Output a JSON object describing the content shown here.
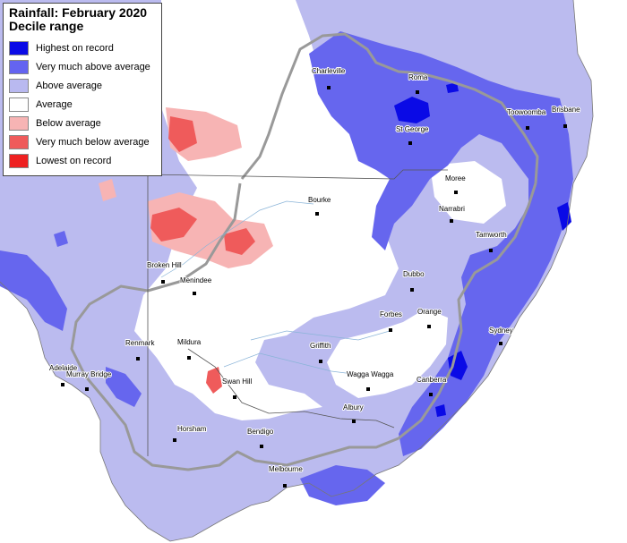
{
  "legend": {
    "title": "Rainfall: February 2020",
    "subtitle": "Decile range",
    "items": [
      {
        "label": "Highest on record",
        "color": "#0a0ae6"
      },
      {
        "label": "Very much above average",
        "color": "#6464f0"
      },
      {
        "label": "Above average",
        "color": "#b9b9f0"
      },
      {
        "label": "Average",
        "color": "#ffffff"
      },
      {
        "label": "Below average",
        "color": "#f7b4b4"
      },
      {
        "label": "Very much below average",
        "color": "#ef5b5b"
      },
      {
        "label": "Lowest on record",
        "color": "#ee2020"
      }
    ]
  },
  "places": {
    "charleville": "Charleville",
    "roma": "Roma",
    "toowoomba": "Toowoomba",
    "brisbane": "Brisbane",
    "st_george": "St George",
    "moree": "Moree",
    "narrabri": "Narrabri",
    "bourke": "Bourke",
    "tamworth": "Tamworth",
    "broken_hill": "Broken Hill",
    "menindee": "Menindee",
    "dubbo": "Dubbo",
    "forbes": "Forbes",
    "orange": "Orange",
    "sydney": "Sydney",
    "renmark": "Renmark",
    "mildura": "Mildura",
    "griffith": "Griffith",
    "adelaide": "Adelaide",
    "murray_bridge": "Murray Bridge",
    "wagga_wagga": "Wagga Wagga",
    "canberra": "Canberra",
    "swan_hill": "Swan Hill",
    "albury": "Albury",
    "horsham": "Horsham",
    "bendigo": "Bendigo",
    "melbourne": "Melbourne"
  }
}
